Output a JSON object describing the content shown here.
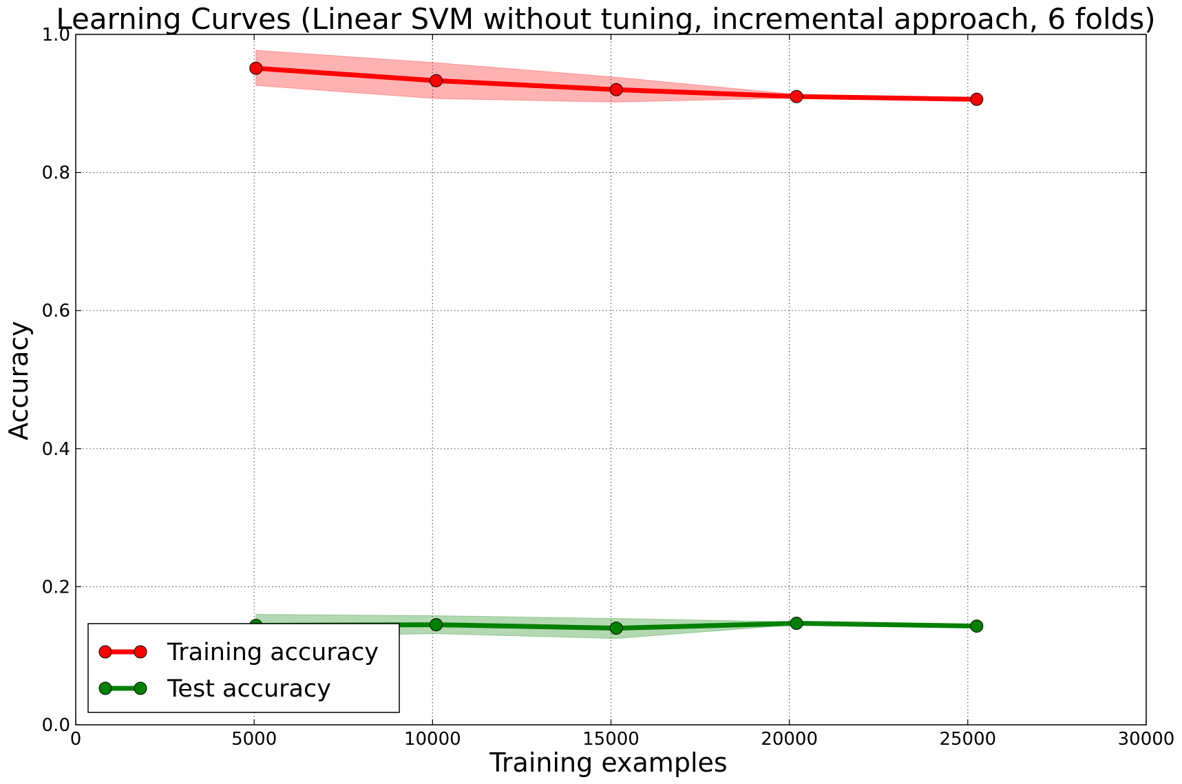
{
  "chart_data": {
    "type": "line",
    "title": "Learning Curves (Linear SVM without tuning, incremental approach, 6 folds)",
    "xlabel": "Training examples",
    "ylabel": "Accuracy",
    "xlim": [
      0,
      30000
    ],
    "ylim": [
      0.0,
      1.0
    ],
    "xticks": [
      0,
      5000,
      10000,
      15000,
      20000,
      25000,
      30000
    ],
    "xtick_labels": [
      "0",
      "5000",
      "10000",
      "15000",
      "20000",
      "25000",
      "30000"
    ],
    "yticks": [
      0.0,
      0.2,
      0.4,
      0.6,
      0.8,
      1.0
    ],
    "ytick_labels": [
      "0.0",
      "0.2",
      "0.4",
      "0.6",
      "0.8",
      "1.0"
    ],
    "grid": true,
    "legend_position": "lower-left",
    "x": [
      5050,
      10100,
      15150,
      20200,
      25250
    ],
    "series": [
      {
        "name": "Training accuracy",
        "color": "#ff0000",
        "band_color": "#ff0000",
        "values": [
          0.951,
          0.933,
          0.92,
          0.91,
          0.906
        ],
        "upper": [
          0.977,
          0.959,
          0.938,
          0.913,
          0.906
        ],
        "lower": [
          0.926,
          0.907,
          0.902,
          0.908,
          0.906
        ]
      },
      {
        "name": "Test accuracy",
        "color": "#008000",
        "band_color": "#008000",
        "values": [
          0.144,
          0.145,
          0.14,
          0.147,
          0.143
        ],
        "upper": [
          0.16,
          0.158,
          0.154,
          0.149,
          0.143
        ],
        "lower": [
          0.128,
          0.132,
          0.125,
          0.145,
          0.143
        ]
      }
    ]
  }
}
